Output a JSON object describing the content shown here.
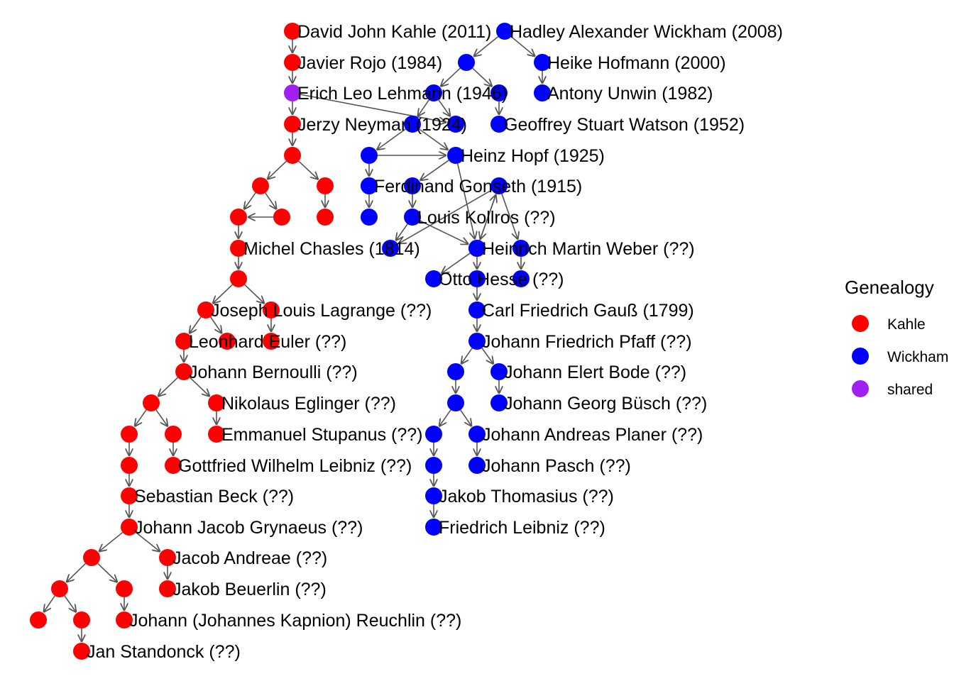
{
  "legend": {
    "title": "Genealogy",
    "items": [
      {
        "label": "Kahle",
        "color": "#ff0000"
      },
      {
        "label": "Wickham",
        "color": "#0000ff"
      },
      {
        "label": "shared",
        "color": "#a020f0"
      }
    ]
  },
  "colors": {
    "kahle": "#ff0000",
    "wickham": "#0000ff",
    "shared": "#a020f0",
    "edge": "#555555"
  },
  "nodes": [
    {
      "id": "kahle",
      "group": "kahle",
      "label": "David John Kahle (2011)"
    },
    {
      "id": "rojo",
      "group": "kahle",
      "label": "Javier Rojo (1984)"
    },
    {
      "id": "lehmann",
      "group": "shared",
      "label": "Erich Leo Lehmann (1946)"
    },
    {
      "id": "neyman",
      "group": "kahle",
      "label": "Jerzy Neyman (1924)"
    },
    {
      "id": "k5",
      "group": "kahle",
      "label": ""
    },
    {
      "id": "k6a",
      "group": "kahle",
      "label": ""
    },
    {
      "id": "k6b",
      "group": "kahle",
      "label": ""
    },
    {
      "id": "k7a",
      "group": "kahle",
      "label": ""
    },
    {
      "id": "k7b",
      "group": "kahle",
      "label": ""
    },
    {
      "id": "k7c",
      "group": "kahle",
      "label": ""
    },
    {
      "id": "chasles",
      "group": "kahle",
      "label": "Michel Chasles (1814)"
    },
    {
      "id": "k9",
      "group": "kahle",
      "label": ""
    },
    {
      "id": "lagrange",
      "group": "kahle",
      "label": "Joseph Louis Lagrange (??)"
    },
    {
      "id": "k10b",
      "group": "kahle",
      "label": ""
    },
    {
      "id": "euler",
      "group": "kahle",
      "label": "Leonhard Euler (??)"
    },
    {
      "id": "k11b",
      "group": "kahle",
      "label": ""
    },
    {
      "id": "k11c",
      "group": "kahle",
      "label": ""
    },
    {
      "id": "bernoulli",
      "group": "kahle",
      "label": "Johann Bernoulli (??)"
    },
    {
      "id": "k13a",
      "group": "kahle",
      "label": ""
    },
    {
      "id": "eglinger",
      "group": "kahle",
      "label": "Nikolaus Eglinger (??)"
    },
    {
      "id": "k14a",
      "group": "kahle",
      "label": ""
    },
    {
      "id": "k14b",
      "group": "kahle",
      "label": ""
    },
    {
      "id": "stupanus",
      "group": "kahle",
      "label": "Emmanuel Stupanus (??)"
    },
    {
      "id": "k15a",
      "group": "kahle",
      "label": ""
    },
    {
      "id": "leibnizgw",
      "group": "kahle",
      "label": "Gottfried Wilhelm Leibniz (??)"
    },
    {
      "id": "beck",
      "group": "kahle",
      "label": "Sebastian Beck (??)"
    },
    {
      "id": "grynaeus",
      "group": "kahle",
      "label": "Johann Jacob Grynaeus (??)"
    },
    {
      "id": "k18a",
      "group": "kahle",
      "label": ""
    },
    {
      "id": "andreae",
      "group": "kahle",
      "label": "Jacob Andreae (??)"
    },
    {
      "id": "k19a",
      "group": "kahle",
      "label": ""
    },
    {
      "id": "k19b",
      "group": "kahle",
      "label": ""
    },
    {
      "id": "beuerlin",
      "group": "kahle",
      "label": "Jakob Beuerlin (??)"
    },
    {
      "id": "k20a",
      "group": "kahle",
      "label": ""
    },
    {
      "id": "k20b",
      "group": "kahle",
      "label": ""
    },
    {
      "id": "reuchlin",
      "group": "kahle",
      "label": "Johann (Johannes Kapnion) Reuchlin (??)"
    },
    {
      "id": "standonck",
      "group": "kahle",
      "label": "Jan Standonck (??)"
    },
    {
      "id": "wickham",
      "group": "wickham",
      "label": "Hadley Alexander Wickham (2008)"
    },
    {
      "id": "w2a",
      "group": "wickham",
      "label": ""
    },
    {
      "id": "hofmann",
      "group": "wickham",
      "label": "Heike Hofmann (2000)"
    },
    {
      "id": "w3a",
      "group": "wickham",
      "label": ""
    },
    {
      "id": "w3b",
      "group": "wickham",
      "label": ""
    },
    {
      "id": "unwin",
      "group": "wickham",
      "label": "Antony Unwin (1982)"
    },
    {
      "id": "w4a",
      "group": "wickham",
      "label": ""
    },
    {
      "id": "w4b",
      "group": "wickham",
      "label": ""
    },
    {
      "id": "watson",
      "group": "wickham",
      "label": "Geoffrey Stuart Watson (1952)"
    },
    {
      "id": "w5a",
      "group": "wickham",
      "label": ""
    },
    {
      "id": "hopf",
      "group": "wickham",
      "label": "Heinz Hopf (1925)"
    },
    {
      "id": "w6a",
      "group": "wickham",
      "label": ""
    },
    {
      "id": "w6b",
      "group": "wickham",
      "label": ""
    },
    {
      "id": "gonseth",
      "group": "wickham",
      "label": "Ferdinand Gonseth (1915)"
    },
    {
      "id": "w7a",
      "group": "wickham",
      "label": ""
    },
    {
      "id": "kollros",
      "group": "wickham",
      "label": "Louis Kollros (??)"
    },
    {
      "id": "w7c",
      "group": "wickham",
      "label": ""
    },
    {
      "id": "w8a",
      "group": "wickham",
      "label": ""
    },
    {
      "id": "w8b",
      "group": "wickham",
      "label": ""
    },
    {
      "id": "weber",
      "group": "wickham",
      "label": "Heinrich Martin Weber (??)"
    },
    {
      "id": "w8d",
      "group": "wickham",
      "label": ""
    },
    {
      "id": "hesse",
      "group": "wickham",
      "label": "Otto Hesse (??)"
    },
    {
      "id": "w9b",
      "group": "wickham",
      "label": ""
    },
    {
      "id": "w9c",
      "group": "wickham",
      "label": ""
    },
    {
      "id": "gauss",
      "group": "wickham",
      "label": "Carl Friedrich Gauß (1799)"
    },
    {
      "id": "pfaff",
      "group": "wickham",
      "label": "Johann Friedrich Pfaff (??)"
    },
    {
      "id": "w12a",
      "group": "wickham",
      "label": ""
    },
    {
      "id": "bode",
      "group": "wickham",
      "label": "Johann Elert Bode (??)"
    },
    {
      "id": "w13a",
      "group": "wickham",
      "label": ""
    },
    {
      "id": "busch",
      "group": "wickham",
      "label": "Johann Georg Büsch (??)"
    },
    {
      "id": "w14a",
      "group": "wickham",
      "label": ""
    },
    {
      "id": "planer",
      "group": "wickham",
      "label": "Johann Andreas Planer (??)"
    },
    {
      "id": "w15a",
      "group": "wickham",
      "label": ""
    },
    {
      "id": "pasch",
      "group": "wickham",
      "label": "Johann Pasch (??)"
    },
    {
      "id": "thomasius",
      "group": "wickham",
      "label": "Jakob Thomasius (??)"
    },
    {
      "id": "leibnizf",
      "group": "wickham",
      "label": "Friedrich Leibniz (??)"
    }
  ],
  "edges": [
    [
      "kahle",
      "rojo"
    ],
    [
      "rojo",
      "lehmann"
    ],
    [
      "lehmann",
      "neyman"
    ],
    [
      "lehmann",
      "w4b"
    ],
    [
      "neyman",
      "k5"
    ],
    [
      "k5",
      "k6a"
    ],
    [
      "k5",
      "k6b"
    ],
    [
      "k6a",
      "k7a"
    ],
    [
      "k6a",
      "k7b"
    ],
    [
      "k7b",
      "k7a"
    ],
    [
      "k6b",
      "k7c"
    ],
    [
      "k7a",
      "chasles"
    ],
    [
      "chasles",
      "k9"
    ],
    [
      "k9",
      "lagrange"
    ],
    [
      "k9",
      "k10b"
    ],
    [
      "lagrange",
      "euler"
    ],
    [
      "lagrange",
      "k11b"
    ],
    [
      "k10b",
      "k11c"
    ],
    [
      "euler",
      "bernoulli"
    ],
    [
      "bernoulli",
      "k13a"
    ],
    [
      "bernoulli",
      "eglinger"
    ],
    [
      "k13a",
      "k14a"
    ],
    [
      "k13a",
      "k14b"
    ],
    [
      "eglinger",
      "stupanus"
    ],
    [
      "k14a",
      "k15a"
    ],
    [
      "k14b",
      "leibnizgw"
    ],
    [
      "k15a",
      "beck"
    ],
    [
      "beck",
      "grynaeus"
    ],
    [
      "grynaeus",
      "k18a"
    ],
    [
      "grynaeus",
      "andreae"
    ],
    [
      "k18a",
      "k19a"
    ],
    [
      "k18a",
      "k19b"
    ],
    [
      "andreae",
      "beuerlin"
    ],
    [
      "k19a",
      "k20a"
    ],
    [
      "k19a",
      "k20b"
    ],
    [
      "k19b",
      "reuchlin"
    ],
    [
      "k20b",
      "standonck"
    ],
    [
      "wickham",
      "w2a"
    ],
    [
      "wickham",
      "hofmann"
    ],
    [
      "w2a",
      "w3a"
    ],
    [
      "w2a",
      "w3b"
    ],
    [
      "hofmann",
      "unwin"
    ],
    [
      "w3a",
      "w4a"
    ],
    [
      "w3a",
      "w4b"
    ],
    [
      "w3b",
      "watson"
    ],
    [
      "w4a",
      "w5a"
    ],
    [
      "w5a",
      "hopf"
    ],
    [
      "w4a",
      "hopf"
    ],
    [
      "w5a",
      "w6a"
    ],
    [
      "hopf",
      "w6b"
    ],
    [
      "hopf",
      "w8b"
    ],
    [
      "w6a",
      "w7a"
    ],
    [
      "w6b",
      "kollros"
    ],
    [
      "w8b",
      "w7c"
    ],
    [
      "kollros",
      "w8a"
    ],
    [
      "kollros",
      "w8b"
    ],
    [
      "w7c",
      "weber"
    ],
    [
      "w7c",
      "w8d"
    ],
    [
      "w7c",
      "w8a"
    ],
    [
      "w8b",
      "hesse"
    ],
    [
      "weber",
      "w9b"
    ],
    [
      "w8d",
      "w9c"
    ],
    [
      "w9b",
      "gauss"
    ],
    [
      "gauss",
      "pfaff"
    ],
    [
      "pfaff",
      "w12a"
    ],
    [
      "pfaff",
      "bode"
    ],
    [
      "w12a",
      "w13a"
    ],
    [
      "bode",
      "busch"
    ],
    [
      "w13a",
      "w14a"
    ],
    [
      "w13a",
      "planer"
    ],
    [
      "w14a",
      "w15a"
    ],
    [
      "planer",
      "pasch"
    ],
    [
      "w15a",
      "thomasius"
    ],
    [
      "thomasius",
      "leibnizf"
    ]
  ]
}
